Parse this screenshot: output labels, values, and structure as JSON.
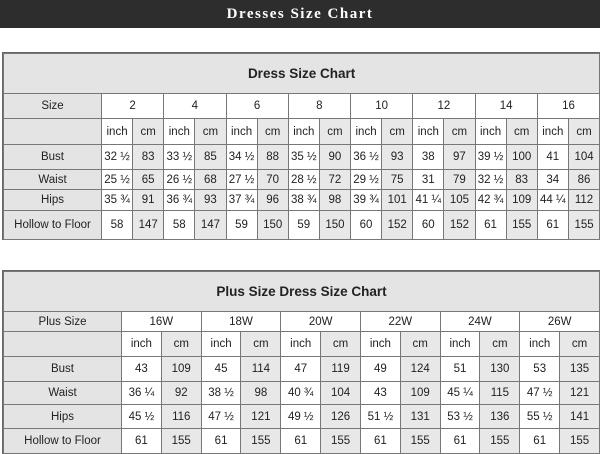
{
  "banner": "Dresses Size Chart",
  "tables": [
    {
      "title": "Dress Size Chart",
      "size_label": "Size",
      "unit_labels": [
        "inch",
        "cm"
      ],
      "sizes": [
        "2",
        "4",
        "6",
        "8",
        "10",
        "12",
        "14",
        "16"
      ],
      "rows": [
        {
          "label": "Bust",
          "values": [
            "32 ½",
            "83",
            "33 ½",
            "85",
            "34 ½",
            "88",
            "35 ½",
            "90",
            "36 ½",
            "93",
            "38",
            "97",
            "39 ½",
            "100",
            "41",
            "104"
          ]
        },
        {
          "label": "Waist",
          "values": [
            "25 ½",
            "65",
            "26 ½",
            "68",
            "27 ½",
            "70",
            "28 ½",
            "72",
            "29 ½",
            "75",
            "31",
            "79",
            "32 ½",
            "83",
            "34",
            "86"
          ]
        },
        {
          "label": "Hips",
          "values": [
            "35 ¾",
            "91",
            "36 ¾",
            "93",
            "37 ¾",
            "96",
            "38 ¾",
            "98",
            "39 ¾",
            "101",
            "41 ¼",
            "105",
            "42 ¾",
            "109",
            "44 ¼",
            "112"
          ]
        },
        {
          "label": "Hollow to Floor",
          "values": [
            "58",
            "147",
            "58",
            "147",
            "59",
            "150",
            "59",
            "150",
            "60",
            "152",
            "60",
            "152",
            "61",
            "155",
            "61",
            "155"
          ]
        }
      ]
    },
    {
      "title": "Plus Size Dress Size Chart",
      "size_label": "Plus Size",
      "unit_labels": [
        "inch",
        "cm"
      ],
      "sizes": [
        "16W",
        "18W",
        "20W",
        "22W",
        "24W",
        "26W"
      ],
      "rows": [
        {
          "label": "Bust",
          "values": [
            "43",
            "109",
            "45",
            "114",
            "47",
            "119",
            "49",
            "124",
            "51",
            "130",
            "53",
            "135"
          ]
        },
        {
          "label": "Waist",
          "values": [
            "36 ¼",
            "92",
            "38 ½",
            "98",
            "40 ¾",
            "104",
            "43",
            "109",
            "45 ¼",
            "115",
            "47 ½",
            "121"
          ]
        },
        {
          "label": "Hips",
          "values": [
            "45 ½",
            "116",
            "47 ½",
            "121",
            "49 ½",
            "126",
            "51 ½",
            "131",
            "53 ½",
            "136",
            "55 ½",
            "141"
          ]
        },
        {
          "label": "Hollow to Floor",
          "values": [
            "61",
            "155",
            "61",
            "155",
            "61",
            "155",
            "61",
            "155",
            "61",
            "155",
            "61",
            "155"
          ]
        }
      ]
    }
  ]
}
